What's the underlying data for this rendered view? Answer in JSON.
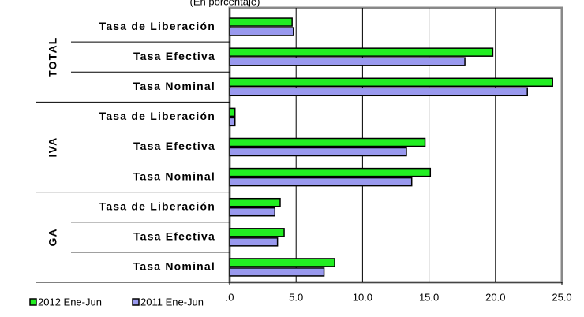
{
  "chart_data": {
    "type": "hbar",
    "title": "(En porcentaje)",
    "groups": [
      "TOTAL",
      "IVA",
      "GA"
    ],
    "categories": [
      "Tasa de Liberación",
      "Tasa Efectiva",
      "Tasa Nominal",
      "Tasa de Liberación",
      "Tasa Efectiva",
      "Tasa Nominal",
      "Tasa de Liberación",
      "Tasa Efectiva",
      "Tasa Nominal"
    ],
    "series": [
      {
        "name": "2012 Ene-Jun",
        "color": "#22ee22",
        "values": [
          4.7,
          19.8,
          24.3,
          0.4,
          14.7,
          15.1,
          3.8,
          4.1,
          7.9
        ]
      },
      {
        "name": "2011 Ene-Jun",
        "color": "#9999ee",
        "values": [
          4.8,
          17.7,
          22.4,
          0.4,
          13.3,
          13.7,
          3.4,
          3.6,
          7.1
        ]
      }
    ],
    "xlim": [
      0,
      25
    ],
    "xticks": [
      {
        "value": 0,
        "label": ".0"
      },
      {
        "value": 5,
        "label": "5.0"
      },
      {
        "value": 10,
        "label": "10.0"
      },
      {
        "value": 15,
        "label": "15.0"
      },
      {
        "value": 20,
        "label": "20.0"
      },
      {
        "value": 25,
        "label": "25.0"
      }
    ],
    "grid": true,
    "legend": "bottom-left"
  }
}
